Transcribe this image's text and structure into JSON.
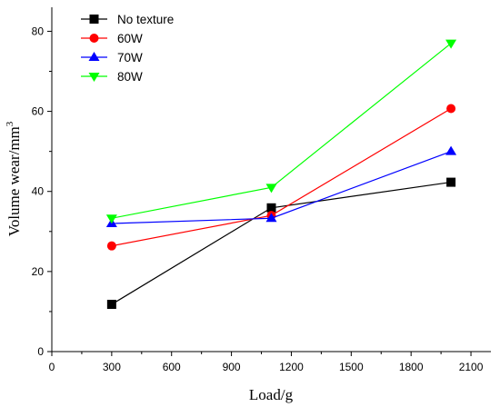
{
  "chart_data": {
    "type": "line",
    "title": "",
    "xlabel": "Load/g",
    "ylabel": "Volume wear/mm",
    "ylabel_superscript": "3",
    "xlim": [
      0,
      2200
    ],
    "ylim": [
      0,
      86
    ],
    "x_ticks": [
      0,
      300,
      600,
      900,
      1200,
      1500,
      1800,
      2100
    ],
    "x_tick_labels": [
      "0",
      "300",
      "600",
      "900",
      "1200",
      "1500",
      "1800",
      "2100"
    ],
    "y_ticks": [
      0,
      20,
      40,
      60,
      80
    ],
    "y_tick_labels": [
      "0",
      "20",
      "40",
      "60",
      "80"
    ],
    "grid": false,
    "legend_position": "top-left",
    "x": [
      300,
      1100,
      2000
    ],
    "series": [
      {
        "name": "No texture",
        "values": [
          11.8,
          35.9,
          42.3
        ],
        "color": "#000000",
        "marker": "square"
      },
      {
        "name": "60W",
        "values": [
          26.4,
          34.0,
          60.7
        ],
        "color": "#ff0000",
        "marker": "circle"
      },
      {
        "name": "70W",
        "values": [
          32.0,
          33.3,
          50.0
        ],
        "color": "#0000ff",
        "marker": "triangle-up"
      },
      {
        "name": "80W",
        "values": [
          33.3,
          41.0,
          77.0
        ],
        "color": "#00ff00",
        "marker": "triangle-down"
      }
    ]
  }
}
